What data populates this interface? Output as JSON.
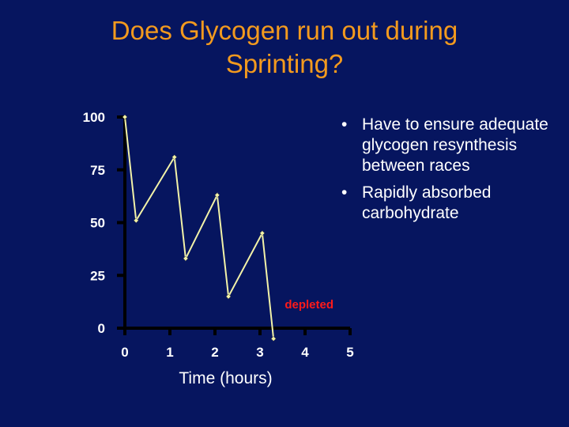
{
  "slide": {
    "title_line1": "Does Glycogen run out during",
    "title_line2": "Sprinting?",
    "bullets": [
      "Have to ensure adequate glycogen resynthesis between races",
      "Rapidly absorbed carbohydrate"
    ]
  },
  "colors": {
    "background": "#06155f",
    "title": "#f39a1e",
    "line": "#f2f2a8",
    "axis": "#000000",
    "annotation": "#ff1a1a",
    "text": "#ffffff"
  },
  "chart_data": {
    "type": "line",
    "title": "",
    "xlabel": "Time (hours)",
    "ylabel": "",
    "xlim": [
      0,
      5
    ],
    "ylim": [
      0,
      100
    ],
    "x_ticks": [
      "0",
      "1",
      "2",
      "3",
      "4",
      "5"
    ],
    "y_ticks": [
      "100",
      "75",
      "50",
      "25",
      "0"
    ],
    "series": [
      {
        "x": [
          0,
          0.25,
          1.1,
          1.35,
          2.05,
          2.3,
          3.05,
          3.3
        ],
        "y": [
          100,
          51,
          81,
          33,
          63,
          15,
          45,
          -5
        ]
      }
    ],
    "annotations": [
      {
        "text": "depleted",
        "x": 3.55,
        "y": 12
      }
    ],
    "grid": false,
    "legend": "none"
  }
}
